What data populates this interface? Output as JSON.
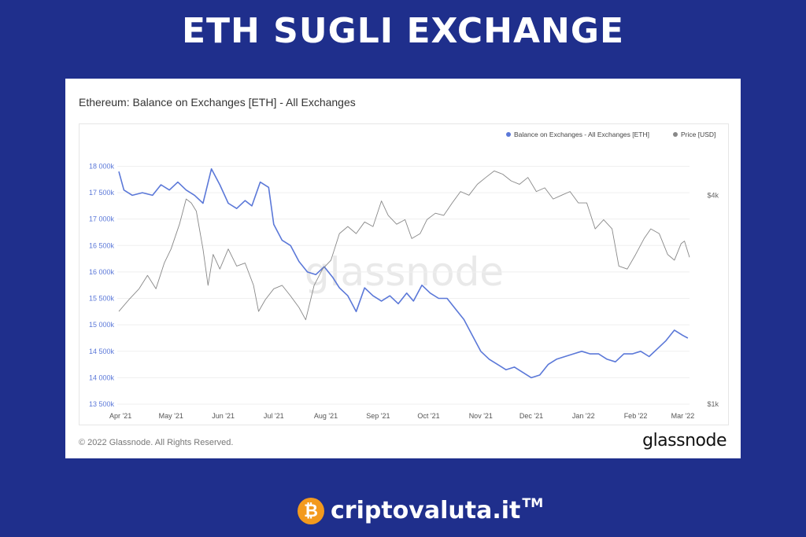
{
  "page": {
    "headline": "ETH SUGLI EXCHANGE",
    "card_title": "Ethereum: Balance on Exchanges [ETH] - All Exchanges",
    "copyright": "© 2022 Glassnode. All Rights Reserved.",
    "logo_text": "glassnode",
    "watermark": "glassnode",
    "brand_text": "criptovaluta.it",
    "brand_tm": "TM",
    "brand_coin_glyph": "₿"
  },
  "colors": {
    "background": "#1f2f8c",
    "balance": "#5b78d8",
    "price": "#888888",
    "coin": "#f39a1e"
  },
  "chart_data": {
    "type": "line",
    "title": "Ethereum: Balance on Exchanges [ETH] - All Exchanges",
    "legend_position": "top-right",
    "grid": true,
    "x_ticks": [
      "Apr '21",
      "May '21",
      "Jun '21",
      "Jul '21",
      "Aug '21",
      "Sep '21",
      "Oct '21",
      "Nov '21",
      "Dec '21",
      "Jan '22",
      "Feb '22",
      "Mar '22"
    ],
    "x_range": [
      "2021-03-31",
      "2022-03-05"
    ],
    "y_left": {
      "ticks": [
        13500,
        14000,
        14500,
        15000,
        15500,
        16000,
        16500,
        17000,
        17500,
        18000
      ],
      "tick_labels": [
        "13 500k",
        "14 000k",
        "14 500k",
        "15 000k",
        "15 500k",
        "16 000k",
        "16 500k",
        "17 000k",
        "17 500k",
        "18 000k"
      ],
      "range": [
        13500,
        18200
      ]
    },
    "y_right": {
      "tick_labels": [
        "$1k",
        "$4k"
      ],
      "scale": "log",
      "range": [
        1000,
        5200
      ]
    },
    "series": [
      {
        "name": "Balance on Exchanges - All Exchanges [ETH]",
        "axis": "left",
        "points": [
          [
            "2021-03-31",
            17900
          ],
          [
            "2021-04-03",
            17550
          ],
          [
            "2021-04-08",
            17450
          ],
          [
            "2021-04-14",
            17500
          ],
          [
            "2021-04-20",
            17450
          ],
          [
            "2021-04-25",
            17650
          ],
          [
            "2021-04-30",
            17550
          ],
          [
            "2021-05-05",
            17700
          ],
          [
            "2021-05-10",
            17550
          ],
          [
            "2021-05-15",
            17450
          ],
          [
            "2021-05-20",
            17300
          ],
          [
            "2021-05-25",
            17950
          ],
          [
            "2021-05-30",
            17650
          ],
          [
            "2021-06-04",
            17300
          ],
          [
            "2021-06-09",
            17200
          ],
          [
            "2021-06-14",
            17350
          ],
          [
            "2021-06-18",
            17250
          ],
          [
            "2021-06-23",
            17700
          ],
          [
            "2021-06-28",
            17600
          ],
          [
            "2021-07-01",
            16900
          ],
          [
            "2021-07-06",
            16600
          ],
          [
            "2021-07-11",
            16500
          ],
          [
            "2021-07-16",
            16200
          ],
          [
            "2021-07-21",
            16000
          ],
          [
            "2021-07-26",
            15950
          ],
          [
            "2021-07-31",
            16100
          ],
          [
            "2021-08-05",
            15900
          ],
          [
            "2021-08-09",
            15700
          ],
          [
            "2021-08-14",
            15550
          ],
          [
            "2021-08-19",
            15250
          ],
          [
            "2021-08-24",
            15700
          ],
          [
            "2021-08-29",
            15550
          ],
          [
            "2021-09-03",
            15450
          ],
          [
            "2021-09-08",
            15550
          ],
          [
            "2021-09-13",
            15400
          ],
          [
            "2021-09-18",
            15600
          ],
          [
            "2021-09-22",
            15450
          ],
          [
            "2021-09-27",
            15750
          ],
          [
            "2021-10-02",
            15600
          ],
          [
            "2021-10-07",
            15500
          ],
          [
            "2021-10-12",
            15500
          ],
          [
            "2021-10-17",
            15300
          ],
          [
            "2021-10-22",
            15100
          ],
          [
            "2021-10-27",
            14800
          ],
          [
            "2021-11-01",
            14500
          ],
          [
            "2021-11-06",
            14350
          ],
          [
            "2021-11-11",
            14250
          ],
          [
            "2021-11-16",
            14150
          ],
          [
            "2021-11-21",
            14200
          ],
          [
            "2021-11-26",
            14100
          ],
          [
            "2021-12-01",
            14000
          ],
          [
            "2021-12-06",
            14050
          ],
          [
            "2021-12-11",
            14250
          ],
          [
            "2021-12-16",
            14350
          ],
          [
            "2021-12-21",
            14400
          ],
          [
            "2021-12-26",
            14450
          ],
          [
            "2021-12-31",
            14500
          ],
          [
            "2022-01-05",
            14450
          ],
          [
            "2022-01-10",
            14450
          ],
          [
            "2022-01-15",
            14350
          ],
          [
            "2022-01-20",
            14300
          ],
          [
            "2022-01-25",
            14450
          ],
          [
            "2022-01-30",
            14450
          ],
          [
            "2022-02-04",
            14500
          ],
          [
            "2022-02-09",
            14400
          ],
          [
            "2022-02-14",
            14550
          ],
          [
            "2022-02-19",
            14700
          ],
          [
            "2022-02-24",
            14900
          ],
          [
            "2022-03-01",
            14800
          ],
          [
            "2022-03-04",
            14750
          ]
        ]
      },
      {
        "name": "Price [USD]",
        "axis": "right",
        "points": [
          [
            "2021-03-31",
            1850
          ],
          [
            "2021-04-06",
            2000
          ],
          [
            "2021-04-12",
            2150
          ],
          [
            "2021-04-17",
            2350
          ],
          [
            "2021-04-22",
            2150
          ],
          [
            "2021-04-27",
            2550
          ],
          [
            "2021-05-01",
            2800
          ],
          [
            "2021-05-06",
            3300
          ],
          [
            "2021-05-10",
            3900
          ],
          [
            "2021-05-13",
            3800
          ],
          [
            "2021-05-16",
            3600
          ],
          [
            "2021-05-20",
            2800
          ],
          [
            "2021-05-23",
            2200
          ],
          [
            "2021-05-26",
            2700
          ],
          [
            "2021-05-30",
            2450
          ],
          [
            "2021-06-04",
            2800
          ],
          [
            "2021-06-09",
            2500
          ],
          [
            "2021-06-14",
            2550
          ],
          [
            "2021-06-19",
            2200
          ],
          [
            "2021-06-22",
            1850
          ],
          [
            "2021-06-26",
            2000
          ],
          [
            "2021-07-01",
            2150
          ],
          [
            "2021-07-06",
            2200
          ],
          [
            "2021-07-11",
            2050
          ],
          [
            "2021-07-16",
            1900
          ],
          [
            "2021-07-20",
            1750
          ],
          [
            "2021-07-25",
            2200
          ],
          [
            "2021-07-30",
            2450
          ],
          [
            "2021-08-04",
            2600
          ],
          [
            "2021-08-09",
            3100
          ],
          [
            "2021-08-14",
            3250
          ],
          [
            "2021-08-19",
            3100
          ],
          [
            "2021-08-24",
            3350
          ],
          [
            "2021-08-29",
            3250
          ],
          [
            "2021-09-03",
            3850
          ],
          [
            "2021-09-07",
            3500
          ],
          [
            "2021-09-12",
            3300
          ],
          [
            "2021-09-17",
            3400
          ],
          [
            "2021-09-21",
            3000
          ],
          [
            "2021-09-26",
            3100
          ],
          [
            "2021-09-30",
            3400
          ],
          [
            "2021-10-05",
            3550
          ],
          [
            "2021-10-10",
            3500
          ],
          [
            "2021-10-15",
            3800
          ],
          [
            "2021-10-20",
            4100
          ],
          [
            "2021-10-25",
            4000
          ],
          [
            "2021-10-30",
            4300
          ],
          [
            "2021-11-04",
            4500
          ],
          [
            "2021-11-09",
            4700
          ],
          [
            "2021-11-14",
            4600
          ],
          [
            "2021-11-19",
            4400
          ],
          [
            "2021-11-24",
            4300
          ],
          [
            "2021-11-29",
            4500
          ],
          [
            "2021-12-04",
            4100
          ],
          [
            "2021-12-09",
            4200
          ],
          [
            "2021-12-14",
            3900
          ],
          [
            "2021-12-19",
            4000
          ],
          [
            "2021-12-24",
            4100
          ],
          [
            "2021-12-29",
            3800
          ],
          [
            "2022-01-03",
            3800
          ],
          [
            "2022-01-08",
            3200
          ],
          [
            "2022-01-13",
            3400
          ],
          [
            "2022-01-18",
            3200
          ],
          [
            "2022-01-22",
            2500
          ],
          [
            "2022-01-27",
            2450
          ],
          [
            "2022-02-01",
            2700
          ],
          [
            "2022-02-06",
            3000
          ],
          [
            "2022-02-10",
            3200
          ],
          [
            "2022-02-15",
            3100
          ],
          [
            "2022-02-20",
            2700
          ],
          [
            "2022-02-24",
            2600
          ],
          [
            "2022-02-28",
            2900
          ],
          [
            "2022-03-02",
            2950
          ],
          [
            "2022-03-05",
            2650
          ]
        ]
      }
    ]
  }
}
